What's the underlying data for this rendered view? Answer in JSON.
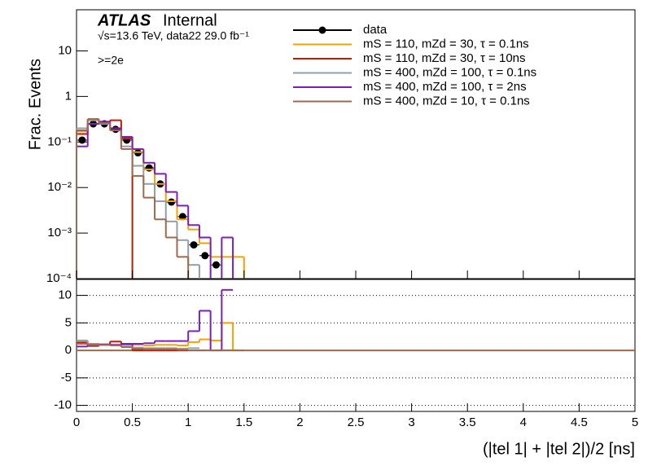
{
  "chart_data": [
    {
      "type": "histogram",
      "log_y": true,
      "ylabel": "Frac. Events",
      "annotations": [
        "ATLAS",
        "Internal",
        "√s=13.6 TeV, data22 29.0 fb⁻¹",
        ">=2e"
      ],
      "bins": [
        0,
        0.1,
        0.2,
        0.3,
        0.4,
        0.5,
        0.6,
        0.7,
        0.8,
        0.9,
        1.0,
        1.1,
        1.2,
        1.3,
        1.4,
        1.5
      ],
      "xlim": [
        0,
        5
      ],
      "ylim": [
        0.0001,
        80
      ],
      "yticks": [
        {
          "value": 0.0001,
          "label": "10⁻⁴"
        },
        {
          "value": 0.001,
          "label": "10⁻³"
        },
        {
          "value": 0.01,
          "label": "10⁻²"
        },
        {
          "value": 0.1,
          "label": "10⁻¹"
        },
        1,
        10
      ],
      "legend": "upper right",
      "series": [
        {
          "name": "data",
          "color": "#000000",
          "style": "markers",
          "values": [
            0.11,
            0.25,
            0.25,
            0.19,
            0.11,
            0.058,
            0.027,
            0.012,
            0.0048,
            0.0023,
            0.00055,
            0.00032,
            0.0002,
            null,
            null
          ]
        },
        {
          "name": "mS = 110, mZd = 30, τ = 0.1ns",
          "color": "#f5a300",
          "style": "step",
          "values": [
            0.17,
            0.3,
            0.25,
            0.2,
            0.12,
            0.06,
            0.025,
            0.012,
            0.005,
            0.002,
            0.0012,
            0.0006,
            0.0003,
            0.0003,
            0.0003
          ]
        },
        {
          "name": "mS = 110, mZd = 30, τ = 10ns",
          "color": "#c01a00",
          "style": "step",
          "values": [
            0.15,
            0.25,
            0.25,
            0.3,
            0.12,
            null,
            null,
            null,
            null,
            null,
            null,
            null,
            null,
            null,
            null
          ]
        },
        {
          "name": "mS = 400, mZd = 100, τ = 0.1ns",
          "color": "#8f9fa8",
          "style": "step",
          "values": [
            0.2,
            0.3,
            0.25,
            0.2,
            0.08,
            0.03,
            0.012,
            0.005,
            0.0018,
            0.0007,
            0.0002,
            null,
            null,
            null,
            null
          ]
        },
        {
          "name": "mS = 400, mZd = 100, τ = 2ns",
          "color": "#7b1fb8",
          "style": "step",
          "values": [
            0.08,
            0.25,
            0.28,
            0.2,
            0.13,
            0.07,
            0.035,
            0.02,
            0.008,
            0.004,
            0.0015,
            0.0008,
            null,
            0.0008,
            null
          ]
        },
        {
          "name": "mS = 400, mZd = 10, τ = 0.1ns",
          "color": "#a0694b",
          "style": "step",
          "values": [
            0.18,
            0.32,
            0.26,
            0.18,
            0.07,
            0.018,
            0.006,
            0.002,
            0.0008,
            0.0003,
            null,
            null,
            null,
            null,
            null
          ]
        }
      ]
    },
    {
      "type": "histogram",
      "xlabel": "(|tel 1| + |tel 2|)/2 [ns]",
      "grid": true,
      "bins": [
        0,
        0.1,
        0.2,
        0.3,
        0.4,
        0.5,
        0.6,
        0.7,
        0.8,
        0.9,
        1.0,
        1.1,
        1.2,
        1.3,
        1.4,
        1.5
      ],
      "xlim": [
        0,
        5
      ],
      "xticks": [
        0,
        0.5,
        1,
        1.5,
        2,
        2.5,
        3,
        3.5,
        4,
        4.5,
        5
      ],
      "ylim": [
        -11.1,
        12.9
      ],
      "yticks": [
        -10,
        -5,
        0,
        5,
        10
      ],
      "reference_line": {
        "value": 0,
        "color": "#a0694b"
      },
      "series": [
        {
          "color": "#f5a300",
          "values": [
            1.6,
            1.2,
            1.0,
            1.0,
            1.1,
            1.0,
            0.9,
            1.0,
            1.0,
            0.9,
            1.5,
            2.0,
            1.8,
            5.0,
            0
          ]
        },
        {
          "color": "#c01a00",
          "values": [
            1.4,
            0.8,
            1.0,
            1.6,
            1.1,
            0,
            0,
            0,
            0,
            0,
            null,
            null,
            null,
            null,
            null
          ]
        },
        {
          "color": "#8f9fa8",
          "values": [
            1.8,
            1.2,
            1.0,
            1.0,
            0.7,
            0.5,
            0.4,
            0.4,
            0.4,
            0.3,
            0.4,
            null,
            null,
            null,
            null
          ]
        },
        {
          "color": "#7b1fb8",
          "values": [
            0.7,
            1.0,
            1.1,
            1.0,
            1.2,
            1.2,
            1.3,
            1.7,
            1.7,
            1.7,
            3.5,
            7.2,
            0,
            11,
            null
          ]
        },
        {
          "color": "#a0694b",
          "values": [
            1.2,
            1.0,
            1.0,
            0.9,
            0.6,
            0.3,
            0.2,
            0.2,
            0.2,
            0.1,
            0,
            0,
            0,
            0,
            0
          ]
        }
      ]
    }
  ]
}
